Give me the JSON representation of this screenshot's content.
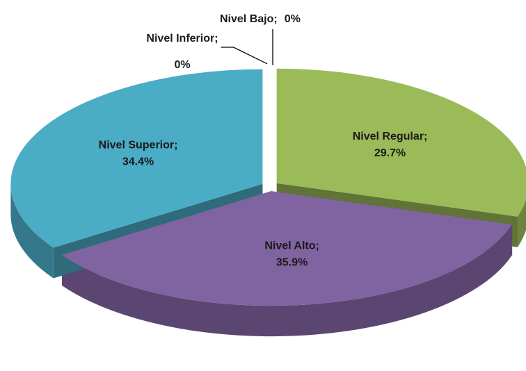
{
  "chart_data": {
    "type": "pie3d",
    "categories": [
      "Nivel Bajo;",
      "Nivel Inferior;",
      "Nivel Regular;",
      "Nivel Alto;",
      "Nivel Superior;"
    ],
    "values": [
      0,
      0,
      29.7,
      35.9,
      34.4
    ],
    "value_labels": [
      "0%",
      "0%",
      "29.7%",
      "35.9%",
      "34.4%"
    ],
    "colors": [
      "#c0504d",
      "#f79646",
      "#9bbb59",
      "#8064a2",
      "#4bacc6"
    ]
  }
}
